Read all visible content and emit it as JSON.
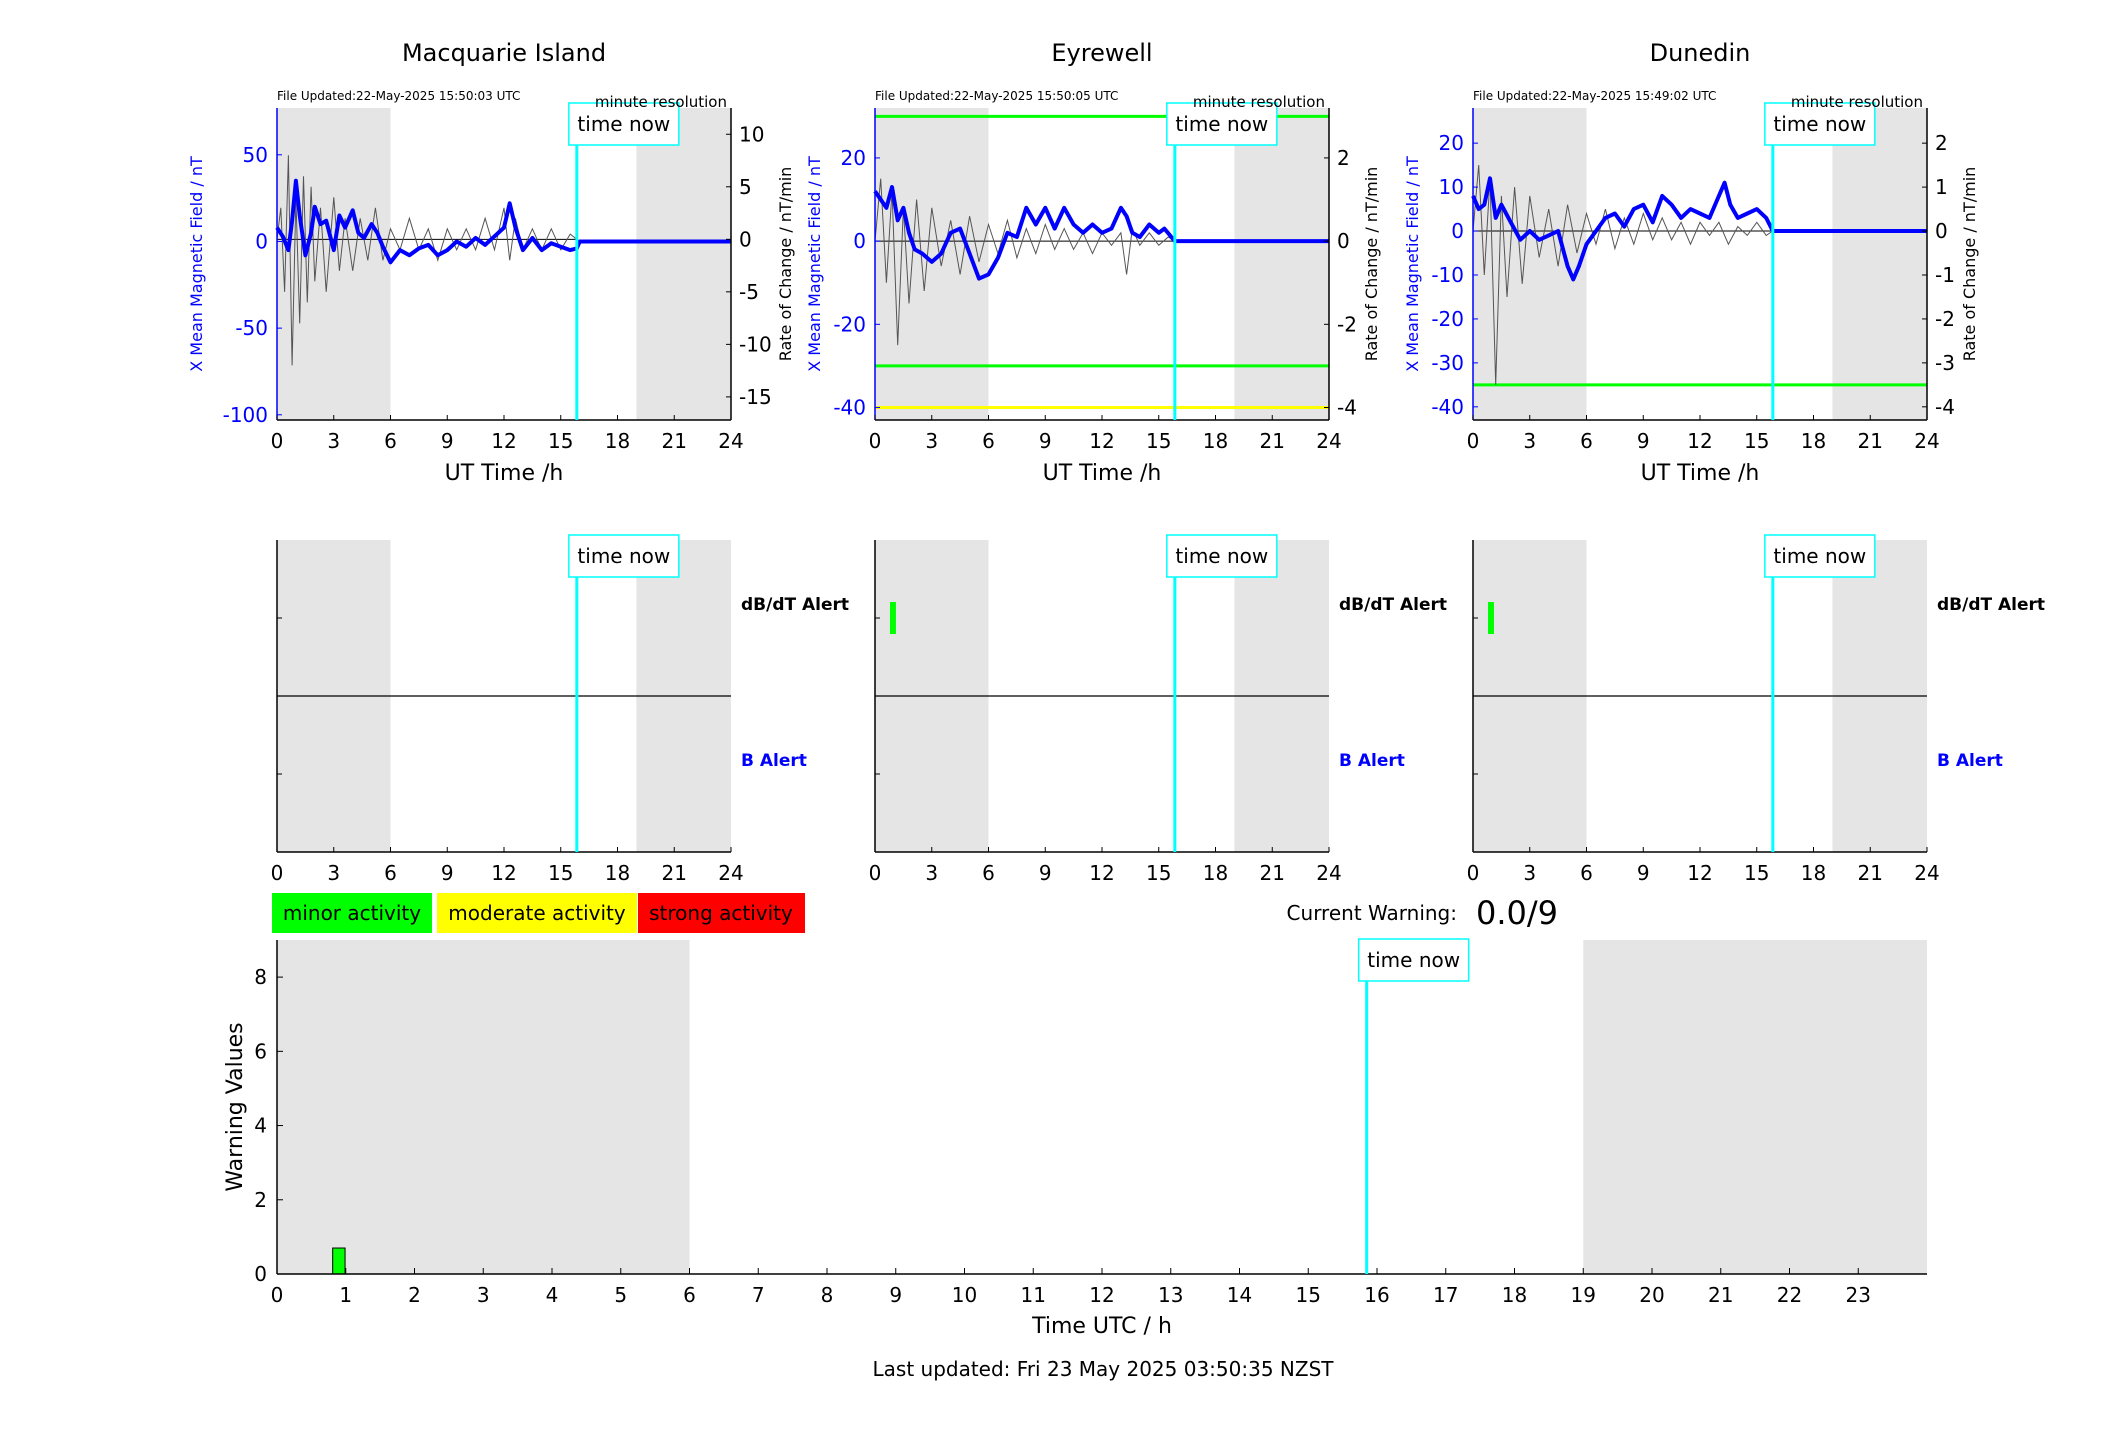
{
  "footer": {
    "last_updated": "Last updated: Fri 23 May 2025 03:50:35 NZST"
  },
  "legend": {
    "minor": "minor activity",
    "moderate": "moderate activity",
    "strong": "strong activity"
  },
  "current_warning": {
    "label": "Current Warning:",
    "value": "0.0/9"
  },
  "colors": {
    "field": "#0000ff",
    "now": "#00ffff",
    "minor": "#00ff00",
    "moderate": "#ffff00",
    "strong": "#ff0000",
    "shade": "#e5e5e5",
    "rate": "#555555"
  },
  "chart_data": [
    {
      "type": "line",
      "title": "Macquarie Island",
      "file_updated": "File Updated:22-May-2025 15:50:03 UTC",
      "resolution": "minute resolution",
      "now_label": "time now",
      "xlabel": "UT Time /h",
      "ylabel_left": "X Mean Magnetic Field / nT",
      "ylabel_right": "Rate of Change / nT/min",
      "xlim": [
        0,
        24
      ],
      "ylim_left": [
        -103,
        77
      ],
      "ylim_right": [
        -17.2,
        12.5
      ],
      "x_ticks": [
        0,
        3,
        6,
        9,
        12,
        15,
        18,
        21,
        24
      ],
      "y_ticks_left": [
        -100,
        -50,
        0,
        50
      ],
      "y_ticks_right": [
        -15,
        -10,
        -5,
        0,
        5,
        10
      ],
      "night_shading": [
        [
          0,
          6
        ],
        [
          19,
          24
        ]
      ],
      "now": 15.85,
      "thresholds": [],
      "series": [
        {
          "color": "#0000ff",
          "x": [
            0,
            0.3,
            0.6,
            0.8,
            1.0,
            1.2,
            1.5,
            1.8,
            2.0,
            2.3,
            2.6,
            3.0,
            3.3,
            3.6,
            4.0,
            4.3,
            4.6,
            5.0,
            5.3,
            5.6,
            6.0,
            6.5,
            7.0,
            7.5,
            8.0,
            8.5,
            9.0,
            9.5,
            10.0,
            10.5,
            11.0,
            11.5,
            12.0,
            12.3,
            12.6,
            13.0,
            13.5,
            14.0,
            14.5,
            15.0,
            15.5,
            15.85,
            16.0,
            24.0
          ],
          "y": [
            8,
            3,
            -5,
            12,
            35,
            15,
            -8,
            5,
            20,
            10,
            12,
            -5,
            15,
            8,
            18,
            5,
            2,
            10,
            5,
            -3,
            -12,
            -5,
            -8,
            -4,
            -2,
            -8,
            -5,
            0,
            -3,
            2,
            -2,
            3,
            8,
            22,
            8,
            -5,
            2,
            -5,
            -1,
            -3,
            -5,
            -4,
            0,
            0
          ]
        }
      ],
      "rate_series": {
        "x": [
          0,
          0.2,
          0.4,
          0.6,
          0.8,
          1.0,
          1.2,
          1.4,
          1.6,
          1.8,
          2.0,
          2.3,
          2.6,
          3.0,
          3.3,
          3.6,
          4.0,
          4.4,
          4.8,
          5.2,
          5.6,
          6.0,
          6.5,
          7.0,
          7.5,
          8.0,
          8.5,
          9.0,
          9.5,
          10.0,
          10.5,
          11.0,
          11.5,
          12.0,
          12.3,
          12.6,
          13.0,
          13.5,
          14.0,
          14.5,
          15.0,
          15.5,
          15.85
        ],
        "y": [
          0,
          3,
          -5,
          8,
          -12,
          4,
          -8,
          6,
          -6,
          5,
          -4,
          3,
          -5,
          4,
          -3,
          2,
          -3,
          2,
          -2,
          3,
          -2,
          1,
          -1,
          2,
          -1,
          1,
          -2,
          1,
          -1,
          1,
          -1,
          2,
          -1,
          3,
          -2,
          2,
          -1,
          1,
          -1,
          1,
          -1,
          0.5,
          0
        ]
      }
    },
    {
      "type": "line",
      "title": "Eyrewell",
      "file_updated": "File Updated:22-May-2025 15:50:05 UTC",
      "resolution": "minute resolution",
      "now_label": "time now",
      "xlabel": "UT Time /h",
      "ylabel_left": "X Mean Magnetic Field / nT",
      "ylabel_right": "Rate of Change / nT/min",
      "xlim": [
        0,
        24
      ],
      "ylim_left": [
        -43,
        32
      ],
      "ylim_right": [
        -4.3,
        3.2
      ],
      "x_ticks": [
        0,
        3,
        6,
        9,
        12,
        15,
        18,
        21,
        24
      ],
      "y_ticks_left": [
        -40,
        -20,
        0,
        20
      ],
      "y_ticks_right": [
        -4,
        -2,
        0,
        2
      ],
      "night_shading": [
        [
          0,
          6
        ],
        [
          19,
          24
        ]
      ],
      "now": 15.85,
      "thresholds": [
        {
          "axis": "right",
          "value": 3,
          "color": "#00ff00"
        },
        {
          "axis": "right",
          "value": -3,
          "color": "#00ff00"
        },
        {
          "axis": "right",
          "value": -4,
          "color": "#ffff00"
        }
      ],
      "series": [
        {
          "color": "#0000ff",
          "x": [
            0,
            0.3,
            0.6,
            0.9,
            1.2,
            1.5,
            1.8,
            2.1,
            2.5,
            3.0,
            3.5,
            4.0,
            4.5,
            5.0,
            5.5,
            6.0,
            6.5,
            7.0,
            7.5,
            8.0,
            8.5,
            9.0,
            9.5,
            10.0,
            10.5,
            11.0,
            11.5,
            12.0,
            12.5,
            13.0,
            13.3,
            13.6,
            14.0,
            14.5,
            15.0,
            15.3,
            15.85,
            16.0,
            24.0
          ],
          "y": [
            12,
            10,
            8,
            13,
            5,
            8,
            2,
            -2,
            -3,
            -5,
            -3,
            2,
            3,
            -3,
            -9,
            -8,
            -4,
            2,
            1,
            8,
            4,
            8,
            3,
            8,
            4,
            2,
            4,
            2,
            3,
            8,
            6,
            2,
            1,
            4,
            2,
            3,
            0,
            0,
            0
          ]
        }
      ],
      "rate_series": {
        "x": [
          0,
          0.3,
          0.6,
          0.9,
          1.2,
          1.5,
          1.8,
          2.2,
          2.6,
          3.0,
          3.5,
          4.0,
          4.5,
          5.0,
          5.5,
          6.0,
          6.5,
          7.0,
          7.5,
          8.0,
          8.5,
          9.0,
          9.5,
          10.0,
          10.5,
          11.0,
          11.5,
          12.0,
          12.5,
          13.0,
          13.3,
          13.6,
          14.0,
          14.5,
          15.0,
          15.5,
          15.85
        ],
        "y": [
          0,
          1.5,
          -1,
          1.2,
          -2.5,
          0.8,
          -1.5,
          1.0,
          -1.2,
          0.8,
          -0.6,
          0.5,
          -0.8,
          0.6,
          -0.5,
          0.4,
          -0.3,
          0.5,
          -0.4,
          0.3,
          -0.3,
          0.4,
          -0.2,
          0.3,
          -0.2,
          0.2,
          -0.3,
          0.2,
          -0.1,
          0.2,
          -0.8,
          0.3,
          -0.1,
          0.2,
          -0.1,
          0.1,
          0
        ]
      }
    },
    {
      "type": "line",
      "title": "Dunedin",
      "file_updated": "File Updated:22-May-2025 15:49:02 UTC",
      "resolution": "minute resolution",
      "now_label": "time now",
      "xlabel": "UT Time /h",
      "ylabel_left": "X Mean Magnetic Field / nT",
      "ylabel_right": "Rate of Change / nT/min",
      "xlim": [
        0,
        24
      ],
      "ylim_left": [
        -43,
        28
      ],
      "ylim_right": [
        -4.3,
        2.8
      ],
      "x_ticks": [
        0,
        3,
        6,
        9,
        12,
        15,
        18,
        21,
        24
      ],
      "y_ticks_left": [
        -40,
        -30,
        -20,
        -10,
        0,
        10,
        20
      ],
      "y_ticks_right": [
        -4,
        -3,
        -2,
        -1,
        0,
        1,
        2
      ],
      "night_shading": [
        [
          0,
          6
        ],
        [
          19,
          24
        ]
      ],
      "now": 15.85,
      "thresholds": [
        {
          "axis": "right",
          "value": -3.5,
          "color": "#00ff00"
        }
      ],
      "series": [
        {
          "color": "#0000ff",
          "x": [
            0,
            0.3,
            0.6,
            0.9,
            1.2,
            1.5,
            2.0,
            2.5,
            3.0,
            3.5,
            4.0,
            4.5,
            5.0,
            5.3,
            5.6,
            6.0,
            6.5,
            7.0,
            7.5,
            8.0,
            8.5,
            9.0,
            9.5,
            10.0,
            10.5,
            11.0,
            11.5,
            12.0,
            12.5,
            13.0,
            13.3,
            13.6,
            14.0,
            14.5,
            15.0,
            15.5,
            15.85,
            16.0,
            24.0
          ],
          "y": [
            8,
            5,
            6,
            12,
            3,
            6,
            2,
            -2,
            0,
            -2,
            -1,
            0,
            -8,
            -11,
            -8,
            -3,
            0,
            3,
            4,
            1,
            5,
            6,
            2,
            8,
            6,
            3,
            5,
            4,
            3,
            8,
            11,
            6,
            3,
            4,
            5,
            3,
            0,
            0,
            0
          ]
        }
      ],
      "rate_series": {
        "x": [
          0,
          0.3,
          0.6,
          0.9,
          1.2,
          1.5,
          1.8,
          2.2,
          2.6,
          3.0,
          3.5,
          4.0,
          4.5,
          5.0,
          5.5,
          6.0,
          6.5,
          7.0,
          7.5,
          8.0,
          8.5,
          9.0,
          9.5,
          10.0,
          10.5,
          11.0,
          11.5,
          12.0,
          12.5,
          13.0,
          13.5,
          14.0,
          14.5,
          15.0,
          15.5,
          15.85
        ],
        "y": [
          0,
          1.5,
          -1,
          1.2,
          -3.5,
          0.8,
          -1.5,
          1.0,
          -1.2,
          0.8,
          -0.6,
          0.5,
          -0.8,
          0.6,
          -0.5,
          0.4,
          -0.3,
          0.5,
          -0.4,
          0.3,
          -0.3,
          0.4,
          -0.2,
          0.3,
          -0.2,
          0.2,
          -0.3,
          0.2,
          -0.1,
          0.2,
          -0.3,
          0.1,
          -0.1,
          0.2,
          -0.1,
          0
        ]
      }
    },
    {
      "type": "bar",
      "title": "",
      "now_label": "time now",
      "label_dbdt": "dB/dT Alert",
      "label_b": "B Alert",
      "xlim": [
        0,
        24
      ],
      "x_ticks": [
        0,
        3,
        6,
        9,
        12,
        15,
        18,
        21,
        24
      ],
      "night_shading": [
        [
          0,
          6
        ],
        [
          19,
          24
        ]
      ],
      "now": 15.85,
      "dbdt_alerts": [],
      "b_alerts": []
    },
    {
      "type": "bar",
      "title": "",
      "now_label": "time now",
      "label_dbdt": "dB/dT Alert",
      "label_b": "B Alert",
      "xlim": [
        0,
        24
      ],
      "x_ticks": [
        0,
        3,
        6,
        9,
        12,
        15,
        18,
        21,
        24
      ],
      "night_shading": [
        [
          0,
          6
        ],
        [
          19,
          24
        ]
      ],
      "now": 15.85,
      "dbdt_alerts": [
        {
          "x": 0.95,
          "level": "minor"
        }
      ],
      "b_alerts": []
    },
    {
      "type": "bar",
      "title": "",
      "now_label": "time now",
      "label_dbdt": "dB/dT Alert",
      "label_b": "B Alert",
      "xlim": [
        0,
        24
      ],
      "x_ticks": [
        0,
        3,
        6,
        9,
        12,
        15,
        18,
        21,
        24
      ],
      "night_shading": [
        [
          0,
          6
        ],
        [
          19,
          24
        ]
      ],
      "now": 15.85,
      "dbdt_alerts": [
        {
          "x": 0.95,
          "level": "minor"
        }
      ],
      "b_alerts": []
    },
    {
      "type": "bar",
      "title": "",
      "now_label": "time now",
      "xlabel": "Time UTC / h",
      "ylabel": "Warning Values",
      "xlim": [
        0,
        24
      ],
      "ylim": [
        0,
        9
      ],
      "x_ticks": [
        0,
        1,
        2,
        3,
        4,
        5,
        6,
        7,
        8,
        9,
        10,
        11,
        12,
        13,
        14,
        15,
        16,
        17,
        18,
        19,
        20,
        21,
        22,
        23
      ],
      "y_ticks": [
        0,
        2,
        4,
        6,
        8
      ],
      "night_shading": [
        [
          0,
          6
        ],
        [
          19,
          24
        ]
      ],
      "now": 15.85,
      "categories": [
        0.9
      ],
      "values": [
        0.7
      ],
      "bar_levels": [
        "minor"
      ]
    }
  ]
}
